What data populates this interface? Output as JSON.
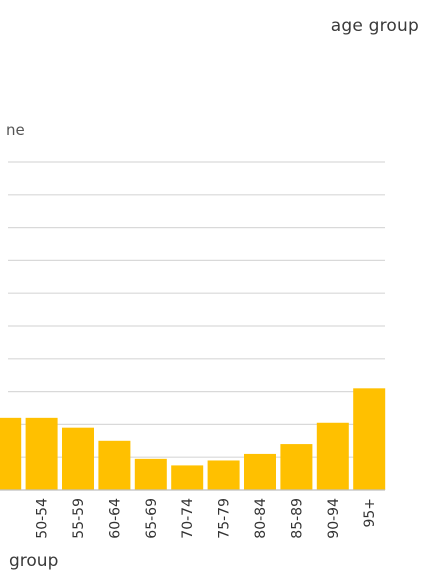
{
  "chart_data": {
    "type": "bar",
    "title": "age group",
    "ylabel": "ne",
    "xlabel": "group",
    "categories": [
      "",
      "50-54",
      "55-59",
      "60-64",
      "65-69",
      "70-74",
      "75-79",
      "80-84",
      "85-89",
      "90-94",
      "95+"
    ],
    "values": [
      2.2,
      2.2,
      1.9,
      1.5,
      0.95,
      0.75,
      0.9,
      1.1,
      1.4,
      2.05,
      3.1
    ],
    "ylim": [
      0,
      10
    ],
    "grid": true,
    "colors": {
      "bar": "#FFC000",
      "grid": "#d9d9d9",
      "axis": "#bfbfbf"
    }
  }
}
